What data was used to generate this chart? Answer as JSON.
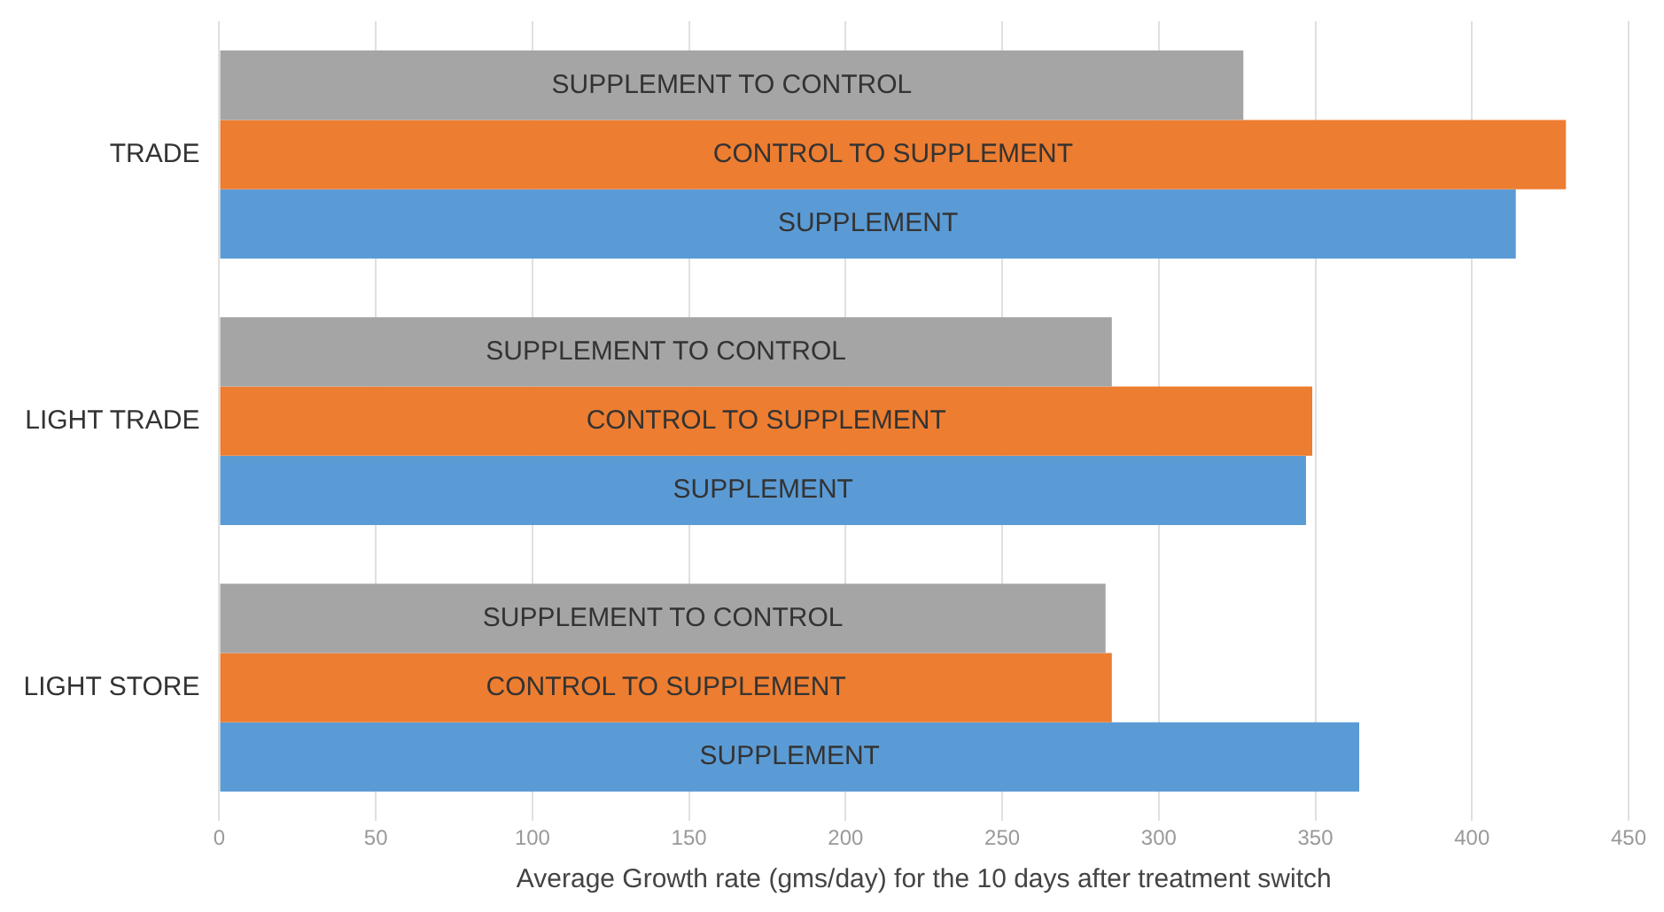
{
  "chart_data": {
    "type": "bar",
    "orientation": "horizontal",
    "xlabel": "Average Growth rate (gms/day) for the 10 days after treatment switch",
    "categories": [
      "TRADE",
      "LIGHT TRADE",
      "LIGHT STORE"
    ],
    "series": [
      {
        "name": "SUPPLEMENT TO CONTROL",
        "color": "#a5a5a5",
        "values": [
          327,
          285,
          283
        ]
      },
      {
        "name": "CONTROL TO SUPPLEMENT",
        "color": "#ed7d31",
        "values": [
          430,
          349,
          285
        ]
      },
      {
        "name": "SUPPLEMENT",
        "color": "#5b9bd5",
        "values": [
          414,
          347,
          364
        ]
      }
    ],
    "xlim": [
      0,
      450
    ],
    "xticks": [
      0,
      50,
      100,
      150,
      200,
      250,
      300,
      350,
      400,
      450
    ],
    "grid": "x",
    "legend": false
  }
}
